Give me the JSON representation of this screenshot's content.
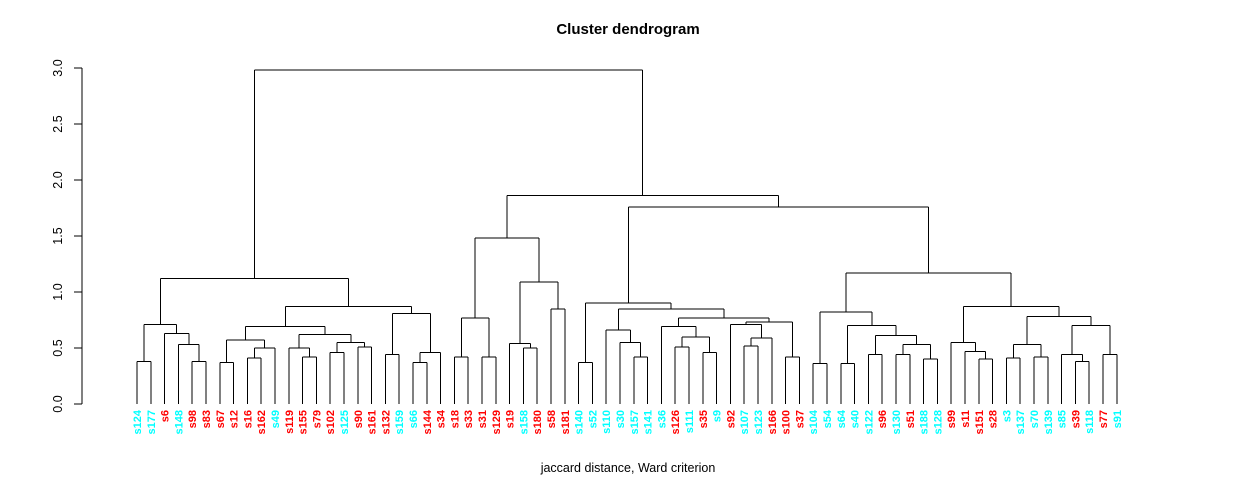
{
  "title": "Cluster dendrogram",
  "xlabel": "jaccard distance, Ward criterion",
  "chart_data": {
    "type": "dendrogram",
    "title": "Cluster dendrogram",
    "xlabel": "jaccard distance, Ward criterion",
    "ylabel": "",
    "ylim": [
      0.0,
      3.0
    ],
    "yticks": [
      0.0,
      0.5,
      1.0,
      1.5,
      2.0,
      2.5,
      3.0
    ],
    "grid": "off",
    "line_color": "#000000",
    "label_colors": {
      "red": "#FF0000",
      "cyan": "#00FFFF"
    },
    "leaves": [
      {
        "label": "s124",
        "color": "cyan"
      },
      {
        "label": "s177",
        "color": "cyan"
      },
      {
        "label": "s6",
        "color": "red"
      },
      {
        "label": "s148",
        "color": "cyan"
      },
      {
        "label": "s98",
        "color": "red"
      },
      {
        "label": "s83",
        "color": "red"
      },
      {
        "label": "s67",
        "color": "red"
      },
      {
        "label": "s12",
        "color": "red"
      },
      {
        "label": "s16",
        "color": "red"
      },
      {
        "label": "s162",
        "color": "red"
      },
      {
        "label": "s49",
        "color": "cyan"
      },
      {
        "label": "s119",
        "color": "red"
      },
      {
        "label": "s155",
        "color": "red"
      },
      {
        "label": "s79",
        "color": "red"
      },
      {
        "label": "s102",
        "color": "red"
      },
      {
        "label": "s125",
        "color": "cyan"
      },
      {
        "label": "s90",
        "color": "red"
      },
      {
        "label": "s161",
        "color": "red"
      },
      {
        "label": "s132",
        "color": "red"
      },
      {
        "label": "s159",
        "color": "cyan"
      },
      {
        "label": "s66",
        "color": "cyan"
      },
      {
        "label": "s144",
        "color": "red"
      },
      {
        "label": "s34",
        "color": "red"
      },
      {
        "label": "s18",
        "color": "red"
      },
      {
        "label": "s33",
        "color": "red"
      },
      {
        "label": "s31",
        "color": "red"
      },
      {
        "label": "s129",
        "color": "red"
      },
      {
        "label": "s19",
        "color": "red"
      },
      {
        "label": "s158",
        "color": "cyan"
      },
      {
        "label": "s180",
        "color": "red"
      },
      {
        "label": "s58",
        "color": "red"
      },
      {
        "label": "s181",
        "color": "red"
      },
      {
        "label": "s140",
        "color": "cyan"
      },
      {
        "label": "s52",
        "color": "cyan"
      },
      {
        "label": "s110",
        "color": "cyan"
      },
      {
        "label": "s30",
        "color": "cyan"
      },
      {
        "label": "s157",
        "color": "cyan"
      },
      {
        "label": "s141",
        "color": "cyan"
      },
      {
        "label": "s36",
        "color": "cyan"
      },
      {
        "label": "s126",
        "color": "red"
      },
      {
        "label": "s111",
        "color": "cyan"
      },
      {
        "label": "s35",
        "color": "red"
      },
      {
        "label": "s9",
        "color": "cyan"
      },
      {
        "label": "s92",
        "color": "red"
      },
      {
        "label": "s107",
        "color": "cyan"
      },
      {
        "label": "s123",
        "color": "cyan"
      },
      {
        "label": "s166",
        "color": "red"
      },
      {
        "label": "s100",
        "color": "red"
      },
      {
        "label": "s37",
        "color": "red"
      },
      {
        "label": "s104",
        "color": "cyan"
      },
      {
        "label": "s54",
        "color": "cyan"
      },
      {
        "label": "s64",
        "color": "cyan"
      },
      {
        "label": "s40",
        "color": "cyan"
      },
      {
        "label": "s122",
        "color": "cyan"
      },
      {
        "label": "s96",
        "color": "red"
      },
      {
        "label": "s130",
        "color": "cyan"
      },
      {
        "label": "s51",
        "color": "red"
      },
      {
        "label": "s188",
        "color": "cyan"
      },
      {
        "label": "s128",
        "color": "cyan"
      },
      {
        "label": "s99",
        "color": "red"
      },
      {
        "label": "s11",
        "color": "red"
      },
      {
        "label": "s151",
        "color": "red"
      },
      {
        "label": "s28",
        "color": "red"
      },
      {
        "label": "s3",
        "color": "cyan"
      },
      {
        "label": "s137",
        "color": "cyan"
      },
      {
        "label": "s70",
        "color": "cyan"
      },
      {
        "label": "s139",
        "color": "cyan"
      },
      {
        "label": "s85",
        "color": "cyan"
      },
      {
        "label": "s39",
        "color": "red"
      },
      {
        "label": "s118",
        "color": "cyan"
      },
      {
        "label": "s77",
        "color": "red"
      },
      {
        "label": "s91",
        "color": "cyan"
      }
    ],
    "tree": {
      "h": 2.98,
      "c": [
        {
          "h": 1.12,
          "c": [
            {
              "h": 0.71,
              "c": [
                {
                  "h": 0.38,
                  "c": [
                    0,
                    1
                  ]
                },
                {
                  "h": 0.63,
                  "c": [
                    2,
                    {
                      "h": 0.53,
                      "c": [
                        3,
                        {
                          "h": 0.38,
                          "c": [
                            4,
                            5
                          ]
                        }
                      ]
                    }
                  ]
                }
              ]
            },
            {
              "h": 0.87,
              "c": [
                {
                  "h": 0.69,
                  "c": [
                    {
                      "h": 0.57,
                      "c": [
                        {
                          "h": 0.37,
                          "c": [
                            6,
                            7
                          ]
                        },
                        {
                          "h": 0.5,
                          "c": [
                            {
                              "h": 0.41,
                              "c": [
                                8,
                                9
                              ]
                            },
                            10
                          ]
                        }
                      ]
                    },
                    {
                      "h": 0.62,
                      "c": [
                        {
                          "h": 0.5,
                          "c": [
                            11,
                            {
                              "h": 0.42,
                              "c": [
                                12,
                                13
                              ]
                            }
                          ]
                        },
                        {
                          "h": 0.55,
                          "c": [
                            {
                              "h": 0.46,
                              "c": [
                                14,
                                15
                              ]
                            },
                            {
                              "h": 0.51,
                              "c": [
                                16,
                                17
                              ]
                            }
                          ]
                        }
                      ]
                    }
                  ]
                },
                {
                  "h": 0.81,
                  "c": [
                    {
                      "h": 0.44,
                      "c": [
                        18,
                        19
                      ]
                    },
                    {
                      "h": 0.46,
                      "c": [
                        {
                          "h": 0.37,
                          "c": [
                            20,
                            21
                          ]
                        },
                        22
                      ]
                    }
                  ]
                }
              ]
            }
          ]
        },
        {
          "h": 1.86,
          "c": [
            {
              "h": 1.48,
              "c": [
                {
                  "h": 0.77,
                  "c": [
                    {
                      "h": 0.42,
                      "c": [
                        23,
                        24
                      ]
                    },
                    {
                      "h": 0.42,
                      "c": [
                        25,
                        26
                      ]
                    }
                  ]
                },
                {
                  "h": 1.09,
                  "c": [
                    {
                      "h": 0.54,
                      "c": [
                        27,
                        {
                          "h": 0.5,
                          "c": [
                            28,
                            29
                          ]
                        }
                      ]
                    },
                    {
                      "h": 0.85,
                      "c": [
                        30,
                        31
                      ]
                    }
                  ]
                }
              ]
            },
            {
              "h": 1.76,
              "c": [
                {
                  "h": 0.9,
                  "c": [
                    {
                      "h": 0.37,
                      "c": [
                        32,
                        33
                      ]
                    },
                    {
                      "h": 0.85,
                      "c": [
                        {
                          "h": 0.66,
                          "c": [
                            34,
                            {
                              "h": 0.55,
                              "c": [
                                35,
                                {
                                  "h": 0.42,
                                  "c": [
                                    36,
                                    37
                                  ]
                                }
                              ]
                            }
                          ]
                        },
                        {
                          "h": 0.77,
                          "c": [
                            {
                              "h": 0.69,
                              "c": [
                                38,
                                {
                                  "h": 0.6,
                                  "c": [
                                    {
                                      "h": 0.51,
                                      "c": [
                                        39,
                                        40
                                      ]
                                    },
                                    {
                                      "h": 0.46,
                                      "c": [
                                        41,
                                        42
                                      ]
                                    }
                                  ]
                                }
                              ]
                            },
                            {
                              "h": 0.73,
                              "c": [
                                {
                                  "h": 0.71,
                                  "c": [
                                    43,
                                    {
                                      "h": 0.59,
                                      "c": [
                                        {
                                          "h": 0.52,
                                          "c": [
                                            44,
                                            45
                                          ]
                                        },
                                        46
                                      ]
                                    }
                                  ]
                                },
                                {
                                  "h": 0.42,
                                  "c": [
                                    47,
                                    48
                                  ]
                                }
                              ]
                            }
                          ]
                        }
                      ]
                    }
                  ]
                },
                {
                  "h": 1.17,
                  "c": [
                    {
                      "h": 0.82,
                      "c": [
                        {
                          "h": 0.36,
                          "c": [
                            49,
                            50
                          ]
                        },
                        {
                          "h": 0.7,
                          "c": [
                            {
                              "h": 0.36,
                              "c": [
                                51,
                                52
                              ]
                            },
                            {
                              "h": 0.61,
                              "c": [
                                {
                                  "h": 0.44,
                                  "c": [
                                    53,
                                    54
                                  ]
                                },
                                {
                                  "h": 0.53,
                                  "c": [
                                    {
                                      "h": 0.44,
                                      "c": [
                                        55,
                                        56
                                      ]
                                    },
                                    {
                                      "h": 0.4,
                                      "c": [
                                        57,
                                        58
                                      ]
                                    }
                                  ]
                                }
                              ]
                            }
                          ]
                        }
                      ]
                    },
                    {
                      "h": 0.87,
                      "c": [
                        {
                          "h": 0.55,
                          "c": [
                            59,
                            {
                              "h": 0.47,
                              "c": [
                                60,
                                {
                                  "h": 0.4,
                                  "c": [
                                    61,
                                    62
                                  ]
                                }
                              ]
                            }
                          ]
                        },
                        {
                          "h": 0.78,
                          "c": [
                            {
                              "h": 0.53,
                              "c": [
                                {
                                  "h": 0.41,
                                  "c": [
                                    63,
                                    64
                                  ]
                                },
                                {
                                  "h": 0.42,
                                  "c": [
                                    65,
                                    66
                                  ]
                                }
                              ]
                            },
                            {
                              "h": 0.7,
                              "c": [
                                {
                                  "h": 0.44,
                                  "c": [
                                    67,
                                    {
                                      "h": 0.38,
                                      "c": [
                                        68,
                                        69
                                      ]
                                    }
                                  ]
                                },
                                {
                                  "h": 0.44,
                                  "c": [
                                    70,
                                    71
                                  ]
                                }
                              ]
                            }
                          ]
                        }
                      ]
                    }
                  ]
                }
              ]
            }
          ]
        }
      ]
    }
  }
}
